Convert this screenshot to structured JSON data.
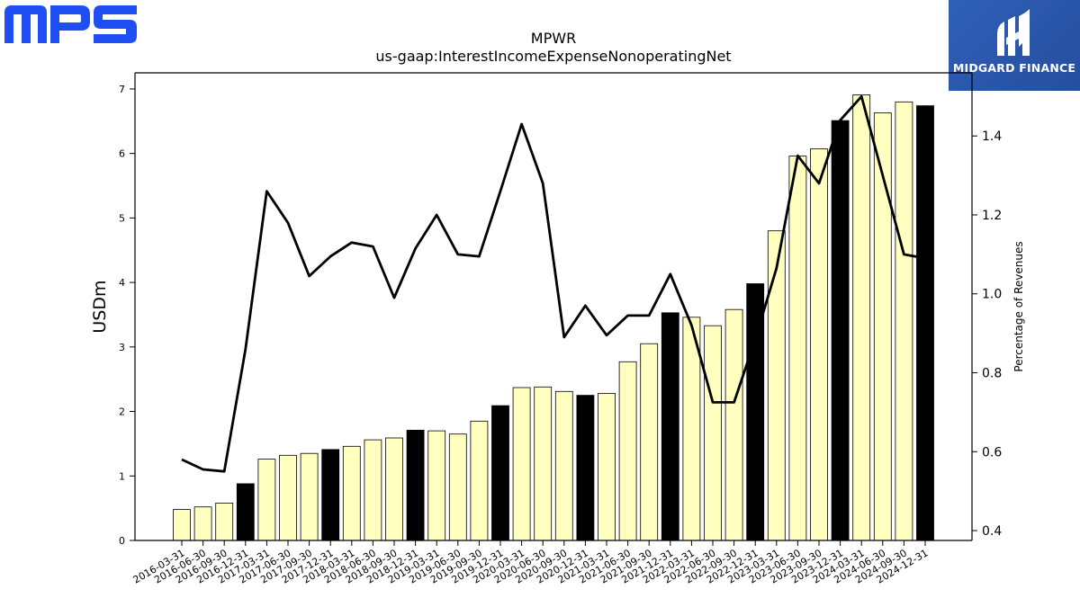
{
  "brand": {
    "left_logo_text": "MPS",
    "left_logo_color": "#1f4ef5",
    "right_logo_text": "MIDGARD FINANCE",
    "right_logo_color": "#2b58ad"
  },
  "chart_data": {
    "type": "bar",
    "title": "MPWR",
    "subtitle": "us-gaap:InterestIncomeExpenseNonoperatingNet",
    "ylabel": "USDm",
    "y2label": "Percentage of Revenues",
    "ylim": [
      0,
      7.25
    ],
    "y2lim": [
      0.375,
      1.56
    ],
    "yticks": [
      0,
      1,
      2,
      3,
      4,
      5,
      6,
      7
    ],
    "y2ticks": [
      0.4,
      0.6,
      0.8,
      1.0,
      1.2,
      1.4
    ],
    "bar_color_default": "#ffffc0",
    "bar_color_q4": "#000000",
    "line_color": "#000000",
    "categories": [
      "2016-03-31",
      "2016-06-30",
      "2016-09-30",
      "2016-12-31",
      "2017-03-31",
      "2017-06-30",
      "2017-09-30",
      "2017-12-31",
      "2018-03-31",
      "2018-06-30",
      "2018-09-30",
      "2018-12-31",
      "2019-03-31",
      "2019-06-30",
      "2019-09-30",
      "2019-12-31",
      "2020-03-31",
      "2020-06-30",
      "2020-09-30",
      "2020-12-31",
      "2021-03-31",
      "2021-06-30",
      "2021-09-30",
      "2021-12-31",
      "2022-03-31",
      "2022-06-30",
      "2022-09-30",
      "2022-12-31",
      "2023-03-31",
      "2023-06-30",
      "2023-09-30",
      "2023-12-31",
      "2024-03-31",
      "2024-06-30",
      "2024-09-30",
      "2024-12-31"
    ],
    "series": [
      {
        "type": "bar",
        "axis": "left",
        "values": [
          0.48,
          0.52,
          0.58,
          0.88,
          1.26,
          1.32,
          1.35,
          1.41,
          1.46,
          1.56,
          1.59,
          1.71,
          1.7,
          1.65,
          1.85,
          2.09,
          2.37,
          2.38,
          2.31,
          2.25,
          2.28,
          2.77,
          3.05,
          3.53,
          3.46,
          3.33,
          3.58,
          3.98,
          4.8,
          5.96,
          6.07,
          6.51,
          6.91,
          6.63,
          6.8,
          6.74
        ]
      },
      {
        "type": "line",
        "axis": "right",
        "values": [
          0.58,
          0.555,
          0.55,
          0.86,
          1.26,
          1.18,
          1.045,
          1.095,
          1.13,
          1.12,
          0.99,
          1.115,
          1.2,
          1.1,
          1.095,
          1.26,
          1.43,
          1.28,
          0.89,
          0.97,
          0.895,
          0.945,
          0.945,
          1.05,
          0.92,
          0.725,
          0.725,
          0.885,
          1.065,
          1.35,
          1.28,
          1.44,
          1.5,
          1.3,
          1.1,
          1.09
        ]
      }
    ]
  }
}
